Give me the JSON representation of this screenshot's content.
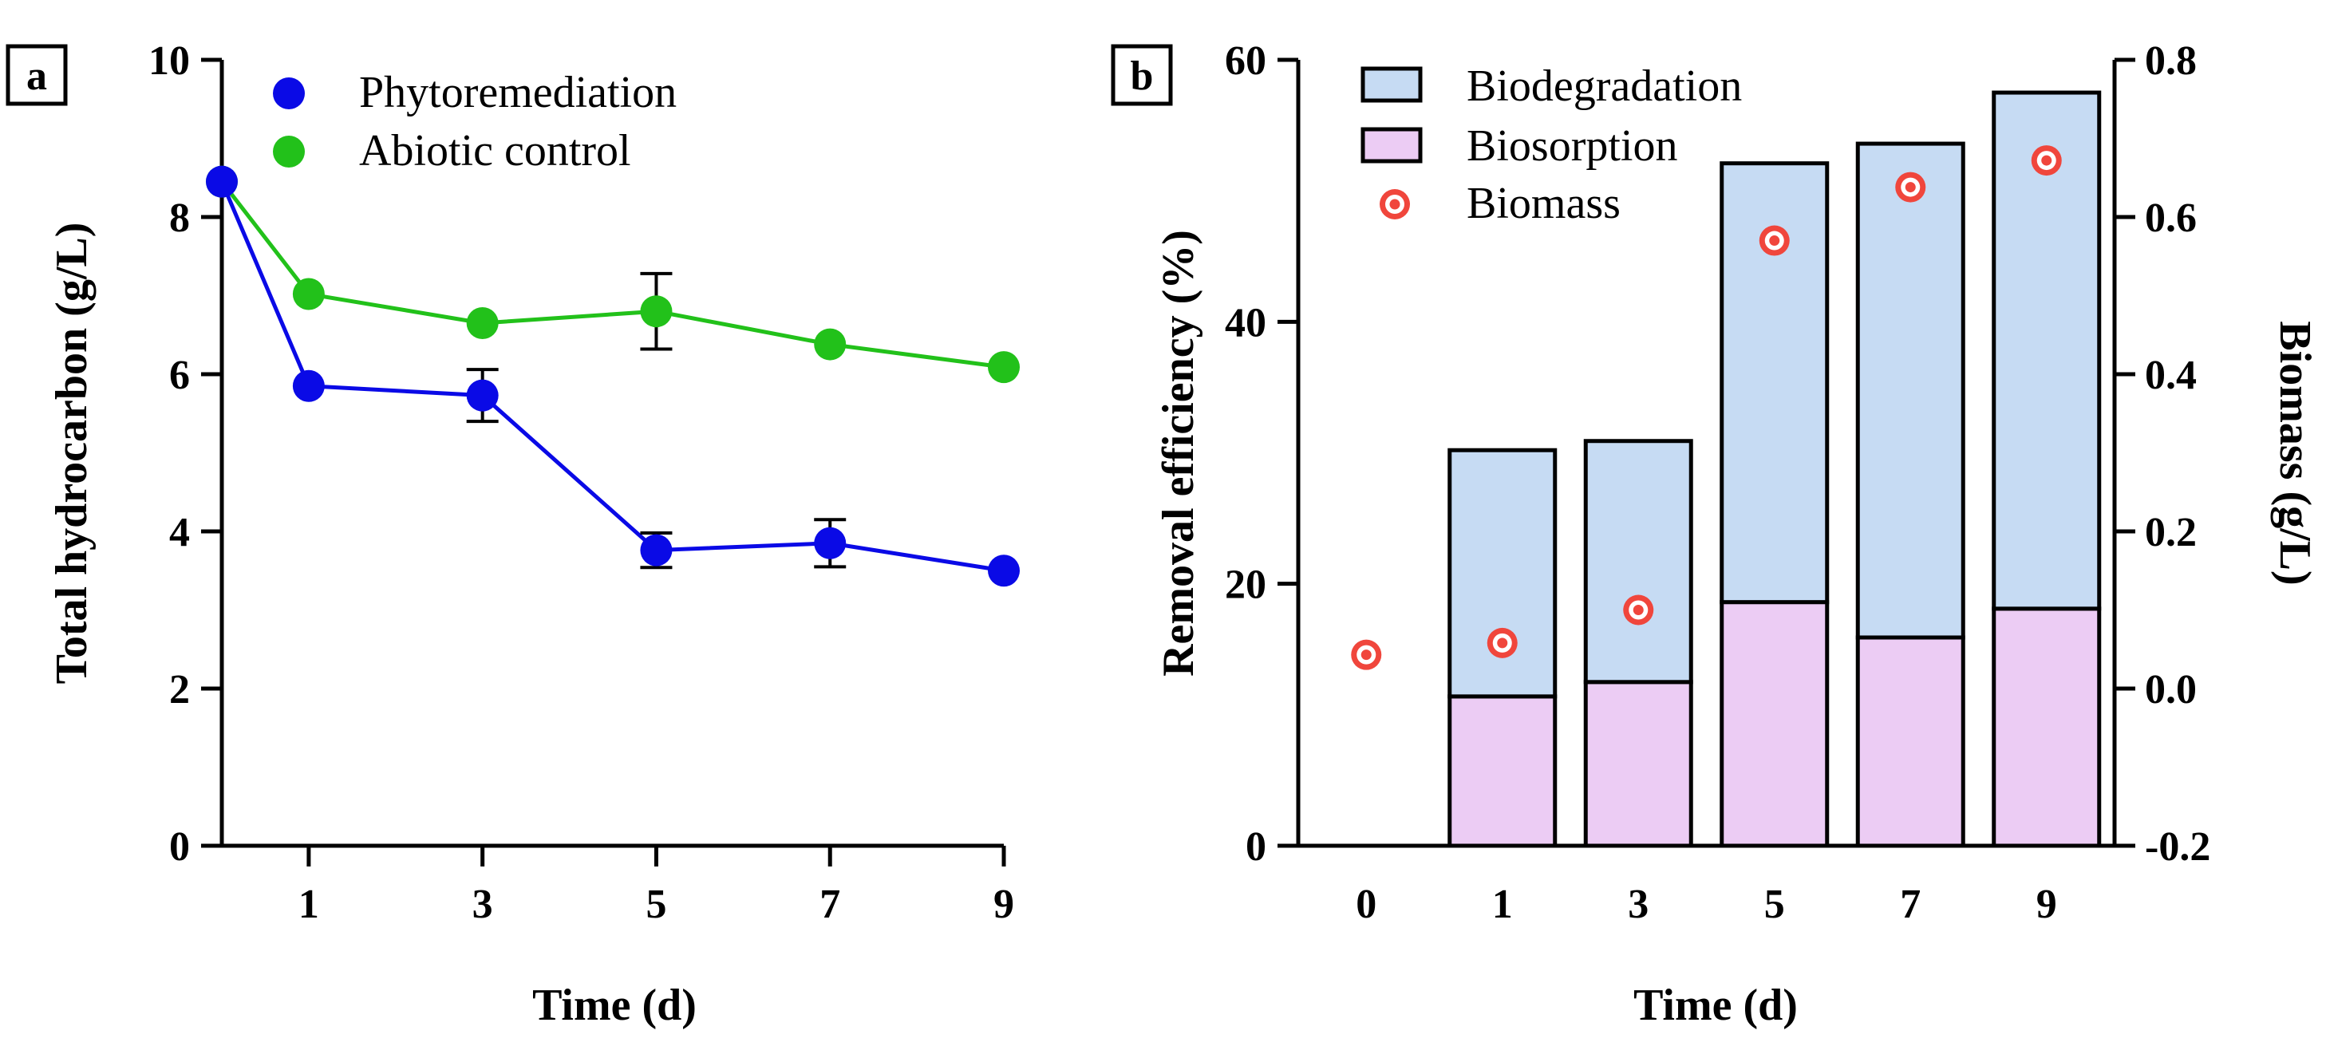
{
  "chart_data": [
    {
      "panel_label": "a",
      "type": "line",
      "xlabel": "Time (d)",
      "ylabel": "Total hydrocarbon (g/L)",
      "xlim": [
        0,
        9
      ],
      "ylim": [
        0,
        10
      ],
      "x_ticks": [
        "1",
        "3",
        "5",
        "7",
        "9"
      ],
      "x_tick_values": [
        1,
        3,
        5,
        7,
        9
      ],
      "y_ticks": [
        "0",
        "2",
        "4",
        "6",
        "8",
        "10"
      ],
      "y_tick_values": [
        0,
        2,
        4,
        6,
        8,
        10
      ],
      "legend_position": "top",
      "grid": false,
      "series": [
        {
          "name": "Phytoremediation",
          "color": "#0a0ae6",
          "x": [
            0,
            1,
            3,
            5,
            7,
            9
          ],
          "y": [
            8.45,
            5.85,
            5.73,
            3.76,
            3.85,
            3.5
          ],
          "error": [
            0,
            0,
            0.33,
            0.22,
            0.3,
            0
          ]
        },
        {
          "name": "Abiotic control",
          "color": "#22c11a",
          "x": [
            0,
            1,
            3,
            5,
            7,
            9
          ],
          "y": [
            8.45,
            7.02,
            6.65,
            6.8,
            6.38,
            6.09
          ],
          "error": [
            0,
            0,
            0,
            0.48,
            0,
            0
          ]
        }
      ]
    },
    {
      "panel_label": "b",
      "type": "bar",
      "stacked": true,
      "xlabel": "Time (d)",
      "ylabel": "Removal efficiency (%)",
      "y2label": "Biomass (g/L)",
      "categories": [
        "0",
        "1",
        "3",
        "5",
        "7",
        "9"
      ],
      "ylim": [
        0,
        60
      ],
      "y2lim": [
        -0.2,
        0.8
      ],
      "y_ticks": [
        "0",
        "20",
        "40",
        "60"
      ],
      "y_tick_values": [
        0,
        20,
        40,
        60
      ],
      "y2_ticks": [
        "-0.2",
        "0.0",
        "0.2",
        "0.4",
        "0.6",
        "0.8"
      ],
      "y2_tick_values": [
        -0.2,
        0,
        0.2,
        0.4,
        0.6,
        0.8
      ],
      "legend_position": "top-left",
      "grid": false,
      "series": [
        {
          "name": "Biosorption",
          "color": "#ecccf4",
          "values": [
            0,
            11.4,
            12.5,
            18.6,
            15.9,
            18.1
          ]
        },
        {
          "name": "Biodegradation",
          "color": "#c6dbf3",
          "values": [
            0,
            18.8,
            18.4,
            33.5,
            37.7,
            39.4
          ]
        },
        {
          "name": "Biomass",
          "color": "#f0463c",
          "axis": "right",
          "values": [
            0.043,
            0.058,
            0.1,
            0.57,
            0.638,
            0.672
          ]
        }
      ],
      "legend_order": [
        "Biodegradation",
        "Biosorption",
        "Biomass"
      ]
    }
  ]
}
